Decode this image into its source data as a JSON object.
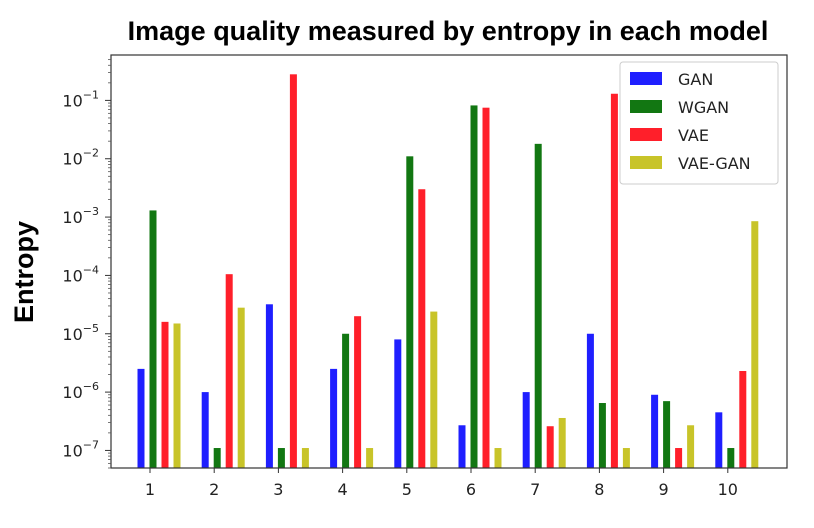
{
  "chart_data": {
    "type": "bar",
    "title": "Image quality measured by entropy in each model",
    "xlabel": "",
    "ylabel": "Entropy",
    "yscale": "log",
    "ylim": [
      5e-08,
      0.6
    ],
    "grid": false,
    "legend_position": "top-right",
    "categories": [
      "1",
      "2",
      "3",
      "4",
      "5",
      "6",
      "7",
      "8",
      "9",
      "10"
    ],
    "yticks": [
      {
        "base": "10",
        "exp": "−7",
        "value": 1e-07
      },
      {
        "base": "10",
        "exp": "−6",
        "value": 1e-06
      },
      {
        "base": "10",
        "exp": "−5",
        "value": 1e-05
      },
      {
        "base": "10",
        "exp": "−4",
        "value": 0.0001
      },
      {
        "base": "10",
        "exp": "−3",
        "value": 0.001
      },
      {
        "base": "10",
        "exp": "−2",
        "value": 0.01
      },
      {
        "base": "10",
        "exp": "−1",
        "value": 0.1
      }
    ],
    "series": [
      {
        "name": "GAN",
        "color": "#1f1fff",
        "values": [
          2.5e-06,
          1e-06,
          3.2e-05,
          2.5e-06,
          8e-06,
          2.7e-07,
          1e-06,
          1e-05,
          9e-07,
          4.5e-07
        ]
      },
      {
        "name": "WGAN",
        "color": "#127712",
        "values": [
          0.0013,
          1.1e-07,
          1.1e-07,
          1e-05,
          0.011,
          0.082,
          0.018,
          6.5e-07,
          7e-07,
          1.1e-07
        ]
      },
      {
        "name": "VAE",
        "color": "#ff1f2a",
        "values": [
          1.6e-05,
          0.000105,
          0.28,
          2e-05,
          0.003,
          0.075,
          2.6e-07,
          0.13,
          1.1e-07,
          2.3e-06
        ]
      },
      {
        "name": "VAE-GAN",
        "color": "#c8c429",
        "values": [
          1.5e-05,
          2.8e-05,
          1.1e-07,
          1.1e-07,
          2.4e-05,
          1.1e-07,
          3.6e-07,
          1.1e-07,
          2.7e-07,
          0.00085
        ]
      }
    ]
  }
}
